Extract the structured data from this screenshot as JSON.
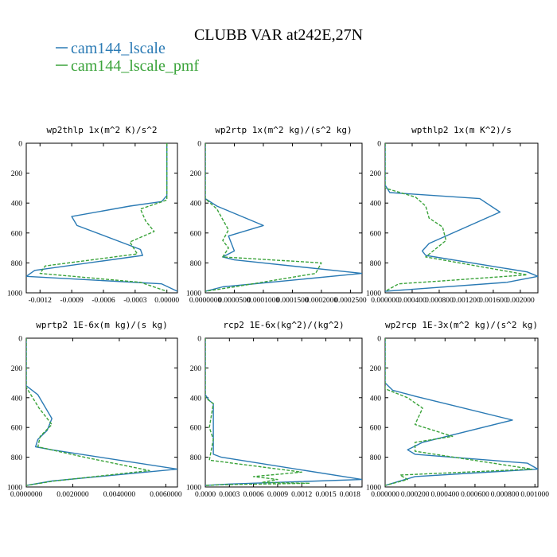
{
  "figure": {
    "title": "CLUBB VAR at242E,27N",
    "legend": [
      {
        "name": "cam144_lscale",
        "color": "#2a7ab4"
      },
      {
        "name": "cam144_lscale_pmf",
        "color": "#3aa33a"
      }
    ]
  },
  "chart_data": [
    {
      "type": "line",
      "title": "wp2thlp  1x(m^2 K)/s^2",
      "xlim": [
        -0.00133,
        0.0001
      ],
      "ylim": [
        0,
        1000
      ],
      "y_inverted": true,
      "xticks": [
        -0.0012,
        -0.0009,
        -0.0006,
        -0.0003,
        0.0
      ],
      "xtick_labels": [
        "-0.0012",
        "-0.0009",
        "-0.0006",
        "-0.0003",
        "0.00000"
      ],
      "yticks": [
        0,
        200,
        400,
        600,
        800,
        1000
      ],
      "series": [
        {
          "name": "cam144_lscale",
          "x": [
            0.0,
            0.0,
            -5e-05,
            -0.00035,
            -0.0009,
            -0.00085,
            -0.00025,
            -0.00023,
            -0.00125,
            -0.00133,
            -5e-05,
            0.0001
          ],
          "y": [
            0,
            350,
            390,
            420,
            490,
            550,
            710,
            750,
            850,
            890,
            940,
            990
          ]
        },
        {
          "name": "cam144_lscale_pmf",
          "x": [
            0.0,
            0.0,
            -0.00025,
            -0.0002,
            -0.00012,
            -0.00035,
            -0.00028,
            -0.00115,
            -0.0012,
            -0.00025,
            0.0
          ],
          "y": [
            0,
            380,
            440,
            520,
            590,
            660,
            740,
            820,
            870,
            930,
            990
          ]
        }
      ]
    },
    {
      "type": "line",
      "title": "wp2rtp  1x(m^2 kg)/(s^2 kg)",
      "xlim": [
        0.0,
        0.00027
      ],
      "ylim": [
        0,
        1000
      ],
      "y_inverted": true,
      "xticks": [
        0.0,
        5e-05,
        0.0001,
        0.00015,
        0.0002,
        0.00025
      ],
      "xtick_labels": [
        "0.0000000",
        "0.0000500",
        "0.0001000",
        "0.0001500",
        "0.0002000",
        "0.0002500"
      ],
      "yticks": [
        0,
        200,
        400,
        600,
        800,
        1000
      ],
      "series": [
        {
          "name": "cam144_lscale",
          "x": [
            0.0,
            0.0,
            2e-05,
            0.0001,
            4e-05,
            5e-05,
            3e-05,
            5e-05,
            0.00027,
            3e-05,
            0.0
          ],
          "y": [
            0,
            370,
            420,
            550,
            620,
            720,
            760,
            780,
            870,
            960,
            990
          ]
        },
        {
          "name": "cam144_lscale_pmf",
          "x": [
            0.0,
            0.0,
            2e-05,
            4e-05,
            3e-05,
            4e-05,
            3e-05,
            0.0002,
            0.00019,
            5e-05,
            0.0
          ],
          "y": [
            0,
            370,
            440,
            580,
            650,
            700,
            760,
            800,
            870,
            960,
            990
          ]
        }
      ]
    },
    {
      "type": "line",
      "title": "wpthlp2  1x(m K^2)/s",
      "xlim": [
        0.0,
        0.00226
      ],
      "ylim": [
        0,
        1000
      ],
      "y_inverted": true,
      "xticks": [
        0.0,
        0.0004,
        0.0008,
        0.0012,
        0.0016,
        0.002
      ],
      "xtick_labels": [
        "0.000000",
        "0.000400",
        "0.000800",
        "0.001200",
        "0.001600",
        "0.002000"
      ],
      "yticks": [
        0,
        200,
        400,
        600,
        800,
        1000
      ],
      "series": [
        {
          "name": "cam144_lscale",
          "x": [
            0.0,
            0.0,
            7e-05,
            0.0014,
            0.0017,
            0.00065,
            0.00055,
            0.0006,
            0.0021,
            0.00226,
            0.0018,
            0.0
          ],
          "y": [
            0,
            280,
            330,
            370,
            460,
            670,
            720,
            750,
            860,
            890,
            930,
            990
          ]
        },
        {
          "name": "cam144_lscale_pmf",
          "x": [
            0.0,
            0.0,
            0.00045,
            0.0006,
            0.00065,
            0.00085,
            0.0009,
            0.0006,
            0.0021,
            0.00085,
            0.0002,
            0.0
          ],
          "y": [
            0,
            300,
            360,
            420,
            500,
            560,
            650,
            760,
            880,
            920,
            940,
            990
          ]
        }
      ]
    },
    {
      "type": "line",
      "title": "wprtp2  1E-6x(m kg)/(s kg)",
      "xlim": [
        0.0,
        0.0065
      ],
      "ylim": [
        0,
        1000
      ],
      "y_inverted": true,
      "xticks": [
        0.0,
        0.002,
        0.004,
        0.006
      ],
      "xtick_labels": [
        "0.0000000",
        "0.0020000",
        "0.0040000",
        "0.0060000"
      ],
      "yticks": [
        0,
        200,
        400,
        600,
        800,
        1000
      ],
      "series": [
        {
          "name": "cam144_lscale",
          "x": [
            0.0,
            0.0,
            0.0005,
            0.0011,
            0.0009,
            0.0005,
            0.0004,
            0.0011,
            0.0065,
            0.0011,
            0.0
          ],
          "y": [
            0,
            320,
            380,
            540,
            620,
            680,
            730,
            750,
            880,
            960,
            990
          ]
        },
        {
          "name": "cam144_lscale_pmf",
          "x": [
            0.0,
            0.0,
            0.0002,
            0.00055,
            0.0011,
            0.0006,
            0.0005,
            0.0025,
            0.0053,
            0.0012,
            0.0
          ],
          "y": [
            0,
            330,
            380,
            470,
            580,
            660,
            730,
            800,
            890,
            960,
            990
          ]
        }
      ]
    },
    {
      "type": "line",
      "title": "rcp2  1E-6x(kg^2)/(kg^2)",
      "xlim": [
        0.0,
        0.00195
      ],
      "ylim": [
        0,
        1000
      ],
      "y_inverted": true,
      "xticks": [
        0.0,
        0.0003,
        0.0006,
        0.0009,
        0.0012,
        0.0015,
        0.0018
      ],
      "xtick_labels": [
        "0.0000",
        "0.0003",
        "0.0006",
        "0.0009",
        "0.0012",
        "0.0015",
        "0.0018"
      ],
      "yticks": [
        0,
        200,
        400,
        600,
        800,
        1000
      ],
      "series": [
        {
          "name": "cam144_lscale",
          "x": [
            0.0,
            0.0,
            5e-05,
            0.0001,
            0.0001,
            0.0001,
            0.0002,
            0.00195,
            0.0003,
            0.0
          ],
          "y": [
            0,
            380,
            420,
            440,
            600,
            780,
            800,
            950,
            980,
            990
          ]
        },
        {
          "name": "cam144_lscale_pmf",
          "x": [
            0.0,
            0.0,
            0.0001,
            5e-05,
            0.0001,
            5e-05,
            0.0012,
            0.0006,
            0.0009,
            0.0007,
            0.0013,
            0.0002,
            0.0
          ],
          "y": [
            0,
            400,
            440,
            600,
            680,
            820,
            900,
            930,
            950,
            970,
            975,
            985,
            990
          ]
        }
      ]
    },
    {
      "type": "line",
      "title": "wp2rcp  1E-3x(m^2 kg)/(s^2 kg)",
      "xlim": [
        0.0,
        0.00102
      ],
      "ylim": [
        0,
        1000
      ],
      "y_inverted": true,
      "xticks": [
        0.0,
        0.0002,
        0.0004,
        0.0006,
        0.0008,
        0.001
      ],
      "xtick_labels": [
        "0.000000",
        "0.000200",
        "0.000400",
        "0.000600",
        "0.000800",
        "0.001000"
      ],
      "yticks": [
        0,
        200,
        400,
        600,
        800,
        1000
      ],
      "series": [
        {
          "name": "cam144_lscale",
          "x": [
            0.0,
            0.0,
            5e-05,
            0.0002,
            0.00085,
            0.00025,
            0.00015,
            0.0002,
            0.00095,
            0.00102,
            0.0002,
            0.0
          ],
          "y": [
            0,
            300,
            350,
            390,
            550,
            700,
            750,
            780,
            840,
            880,
            930,
            990
          ]
        },
        {
          "name": "cam144_lscale_pmf",
          "x": [
            0.0,
            0.0,
            0.00015,
            0.00025,
            0.0002,
            0.00045,
            0.0002,
            0.0002,
            0.00098,
            0.0001,
            0.00015,
            0.0
          ],
          "y": [
            0,
            340,
            400,
            470,
            580,
            660,
            700,
            760,
            880,
            920,
            950,
            990
          ]
        }
      ]
    }
  ]
}
